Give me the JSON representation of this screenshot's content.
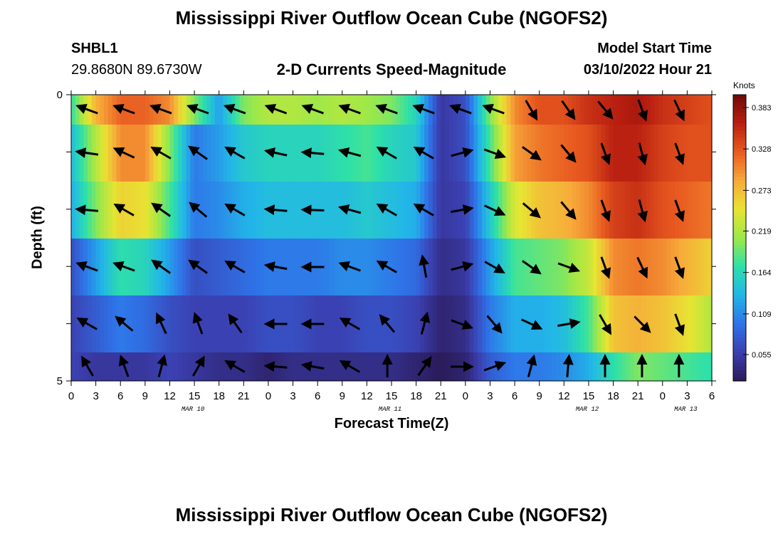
{
  "header": {
    "title": "Mississippi River Outflow Ocean Cube (NGOFS2)",
    "bottom_title": "Mississippi River Outflow Ocean Cube (NGOFS2)",
    "station_id": "SHBL1",
    "station_coords": "29.8680N  89.6730W",
    "plot_title": "2-D Currents Speed-Magnitude",
    "model_start_label": "Model Start Time",
    "model_start_value": "03/10/2022 Hour 21"
  },
  "colors": {
    "colormap": [
      "#2b1b5a",
      "#3b3fb0",
      "#2f73e8",
      "#22b6e8",
      "#2ee0a8",
      "#9ee848",
      "#e8e432",
      "#f7a93a",
      "#e85a20",
      "#b81e10",
      "#6e0a0a"
    ]
  },
  "chart_data": {
    "type": "heatmap",
    "xlabel": "Forecast Time(Z)",
    "ylabel": "Depth (ft)",
    "x_tick_labels": [
      "0",
      "3",
      "6",
      "9",
      "12",
      "15",
      "18",
      "21",
      "0",
      "3",
      "6",
      "9",
      "12",
      "15",
      "18",
      "21",
      "0",
      "3",
      "6",
      "9",
      "12",
      "15",
      "18",
      "21",
      "0",
      "3",
      "6"
    ],
    "date_labels": [
      "MAR 10",
      "MAR 11",
      "MAR 12",
      "MAR 13"
    ],
    "y_tick_labels": [
      "0",
      "5"
    ],
    "ylim": [
      5,
      0
    ],
    "colorbar": {
      "units": "Knots",
      "ticks": [
        "0.383",
        "0.328",
        "0.273",
        "0.219",
        "0.164",
        "0.109",
        "0.055"
      ],
      "min": 0.02,
      "max": 0.4
    },
    "layers": [
      "0.0-0.5 ft",
      "0.5-1.5 ft",
      "1.5-2.5 ft",
      "2.5-3.5 ft",
      "3.5-4.5 ft",
      "4.5-5.0 ft"
    ],
    "speed_keyframes_hours": [
      0,
      3,
      6,
      9,
      12,
      15,
      18,
      21,
      24,
      27,
      30,
      33,
      36,
      39,
      42,
      45,
      48,
      51,
      54,
      57,
      60,
      63,
      66,
      69,
      72,
      75,
      78
    ],
    "speed_layers_knots": [
      [
        0.17,
        0.28,
        0.32,
        0.32,
        0.3,
        0.2,
        0.12,
        0.2,
        0.22,
        0.22,
        0.21,
        0.22,
        0.21,
        0.2,
        0.16,
        0.05,
        0.07,
        0.2,
        0.3,
        0.33,
        0.33,
        0.35,
        0.36,
        0.37,
        0.35,
        0.34,
        0.33
      ],
      [
        0.14,
        0.22,
        0.3,
        0.3,
        0.2,
        0.1,
        0.12,
        0.15,
        0.16,
        0.16,
        0.16,
        0.17,
        0.18,
        0.16,
        0.15,
        0.05,
        0.07,
        0.18,
        0.29,
        0.31,
        0.32,
        0.33,
        0.36,
        0.36,
        0.34,
        0.33,
        0.33
      ],
      [
        0.13,
        0.2,
        0.26,
        0.25,
        0.18,
        0.1,
        0.11,
        0.13,
        0.14,
        0.14,
        0.14,
        0.14,
        0.15,
        0.14,
        0.13,
        0.05,
        0.06,
        0.15,
        0.24,
        0.27,
        0.28,
        0.3,
        0.34,
        0.35,
        0.33,
        0.32,
        0.31
      ],
      [
        0.07,
        0.12,
        0.17,
        0.16,
        0.12,
        0.07,
        0.08,
        0.09,
        0.1,
        0.1,
        0.1,
        0.11,
        0.11,
        0.1,
        0.09,
        0.04,
        0.05,
        0.12,
        0.18,
        0.19,
        0.2,
        0.23,
        0.3,
        0.31,
        0.3,
        0.28,
        0.26
      ],
      [
        0.06,
        0.08,
        0.1,
        0.09,
        0.07,
        0.06,
        0.06,
        0.06,
        0.07,
        0.07,
        0.06,
        0.06,
        0.07,
        0.07,
        0.06,
        0.03,
        0.04,
        0.1,
        0.13,
        0.13,
        0.14,
        0.18,
        0.27,
        0.28,
        0.27,
        0.25,
        0.22
      ],
      [
        0.06,
        0.05,
        0.05,
        0.05,
        0.06,
        0.05,
        0.04,
        0.04,
        0.03,
        0.04,
        0.04,
        0.04,
        0.04,
        0.04,
        0.03,
        0.02,
        0.03,
        0.08,
        0.1,
        0.1,
        0.11,
        0.13,
        0.17,
        0.2,
        0.19,
        0.18,
        0.17
      ]
    ],
    "vector_hours": [
      2,
      6.5,
      11,
      15.5,
      20,
      25,
      29.5,
      34,
      38.5,
      43,
      47.5,
      51.5,
      56,
      60.5,
      65,
      69.5,
      74
    ],
    "vector_layers_direction_deg": [
      [
        290,
        290,
        290,
        290,
        290,
        290,
        290,
        290,
        290,
        290,
        290,
        290,
        150,
        145,
        140,
        160,
        155
      ],
      [
        278,
        295,
        300,
        305,
        300,
        282,
        275,
        285,
        300,
        300,
        75,
        110,
        125,
        140,
        160,
        165,
        160
      ],
      [
        275,
        300,
        305,
        310,
        300,
        275,
        272,
        285,
        300,
        300,
        80,
        115,
        130,
        140,
        160,
        165,
        160
      ],
      [
        290,
        290,
        305,
        305,
        300,
        280,
        270,
        290,
        300,
        350,
        75,
        120,
        125,
        110,
        160,
        155,
        160
      ],
      [
        300,
        310,
        335,
        340,
        325,
        270,
        270,
        300,
        320,
        15,
        110,
        140,
        115,
        80,
        150,
        135,
        160
      ],
      [
        330,
        340,
        15,
        30,
        300,
        275,
        280,
        300,
        0,
        35,
        90,
        70,
        15,
        5,
        0,
        0,
        0
      ]
    ],
    "grid": false,
    "legend": "colorbar right"
  }
}
